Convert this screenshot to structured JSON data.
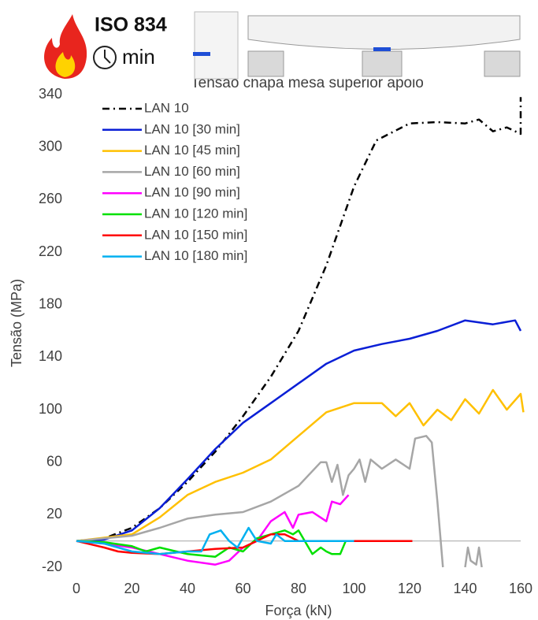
{
  "header": {
    "badge": "ISO 834",
    "unit": "min"
  },
  "chart_data": {
    "type": "line",
    "title": "Tensão chapa mesa superior apoio",
    "x_label": "Força (kN)",
    "y_label": "Tensão (MPa)",
    "xlim": [
      0,
      160
    ],
    "ylim": [
      -20,
      340
    ],
    "xticks": [
      0,
      20,
      40,
      60,
      80,
      100,
      120,
      140,
      160
    ],
    "yticks": [
      -20,
      20,
      60,
      100,
      140,
      180,
      220,
      260,
      300,
      340
    ],
    "legend": "upper-left",
    "series": [
      {
        "name": "LAN 10",
        "color": "#000000",
        "dash": "dashdot",
        "x": [
          0,
          10,
          20,
          30,
          40,
          50,
          60,
          70,
          80,
          90,
          100,
          108,
          120,
          130,
          140,
          145,
          150,
          155,
          160,
          160
        ],
        "values": [
          0,
          2,
          10,
          25,
          45,
          68,
          95,
          125,
          160,
          210,
          270,
          305,
          318,
          319,
          318,
          321,
          312,
          315,
          310,
          338
        ]
      },
      {
        "name": "LAN 10 [30 min]",
        "color": "#0a1fd6",
        "dash": "solid",
        "x": [
          0,
          10,
          20,
          30,
          40,
          50,
          60,
          70,
          80,
          90,
          100,
          110,
          120,
          130,
          140,
          150,
          158,
          160
        ],
        "values": [
          0,
          1,
          8,
          25,
          47,
          70,
          90,
          105,
          120,
          135,
          145,
          150,
          154,
          160,
          168,
          165,
          168,
          160
        ]
      },
      {
        "name": "LAN 10 [45 min]",
        "color": "#ffc000",
        "dash": "solid",
        "x": [
          0,
          20,
          30,
          40,
          50,
          60,
          70,
          80,
          90,
          100,
          110,
          115,
          120,
          125,
          130,
          135,
          140,
          145,
          150,
          155,
          160,
          161
        ],
        "values": [
          0,
          5,
          18,
          35,
          45,
          52,
          62,
          80,
          98,
          105,
          105,
          95,
          105,
          88,
          100,
          92,
          108,
          97,
          115,
          100,
          112,
          98
        ]
      },
      {
        "name": "LAN 10 [60 min]",
        "color": "#a6a6a6",
        "dash": "solid",
        "x": [
          0,
          20,
          30,
          40,
          50,
          60,
          70,
          80,
          88,
          90,
          92,
          94,
          96,
          98,
          100,
          102,
          104,
          106,
          110,
          115,
          120,
          122,
          126,
          128,
          130,
          132,
          null,
          140,
          141,
          142,
          144,
          145,
          146
        ],
        "values": [
          0,
          4,
          10,
          17,
          20,
          22,
          30,
          42,
          60,
          60,
          45,
          58,
          35,
          50,
          55,
          62,
          45,
          62,
          55,
          62,
          55,
          78,
          80,
          75,
          30,
          -20,
          null,
          -20,
          -5,
          -15,
          -18,
          -5,
          -20
        ]
      },
      {
        "name": "LAN 10 [90 min]",
        "color": "#ff00ff",
        "dash": "solid",
        "x": [
          0,
          10,
          20,
          30,
          40,
          50,
          55,
          60,
          65,
          70,
          75,
          78,
          80,
          85,
          90,
          92,
          95,
          98
        ],
        "values": [
          0,
          -2,
          -5,
          -10,
          -15,
          -18,
          -15,
          -5,
          0,
          15,
          22,
          10,
          20,
          22,
          15,
          30,
          28,
          35
        ]
      },
      {
        "name": "LAN 10 [120 min]",
        "color": "#00e000",
        "dash": "solid",
        "x": [
          0,
          10,
          20,
          25,
          30,
          40,
          50,
          55,
          60,
          65,
          70,
          75,
          78,
          80,
          85,
          88,
          90,
          92,
          95,
          97
        ],
        "values": [
          0,
          -1,
          -4,
          -8,
          -5,
          -10,
          -12,
          -5,
          -8,
          2,
          5,
          8,
          5,
          8,
          -10,
          -5,
          -8,
          -10,
          -10,
          0
        ]
      },
      {
        "name": "LAN 10 [150 min]",
        "color": "#ff0000",
        "dash": "solid",
        "x": [
          0,
          10,
          15,
          20,
          30,
          40,
          50,
          60,
          70,
          75,
          80,
          90,
          100,
          110,
          121
        ],
        "values": [
          0,
          -5,
          -8,
          -9,
          -10,
          -8,
          -6,
          -5,
          5,
          5,
          0,
          0,
          0,
          0,
          0
        ]
      },
      {
        "name": "LAN 10 [180 min]",
        "color": "#00b0f0",
        "dash": "solid",
        "x": [
          0,
          10,
          20,
          30,
          40,
          45,
          48,
          52,
          55,
          58,
          62,
          65,
          70,
          72,
          75,
          80,
          90,
          100
        ],
        "values": [
          0,
          -2,
          -8,
          -10,
          -8,
          -8,
          5,
          8,
          0,
          -5,
          10,
          0,
          -2,
          5,
          0,
          0,
          0,
          0
        ]
      }
    ]
  }
}
